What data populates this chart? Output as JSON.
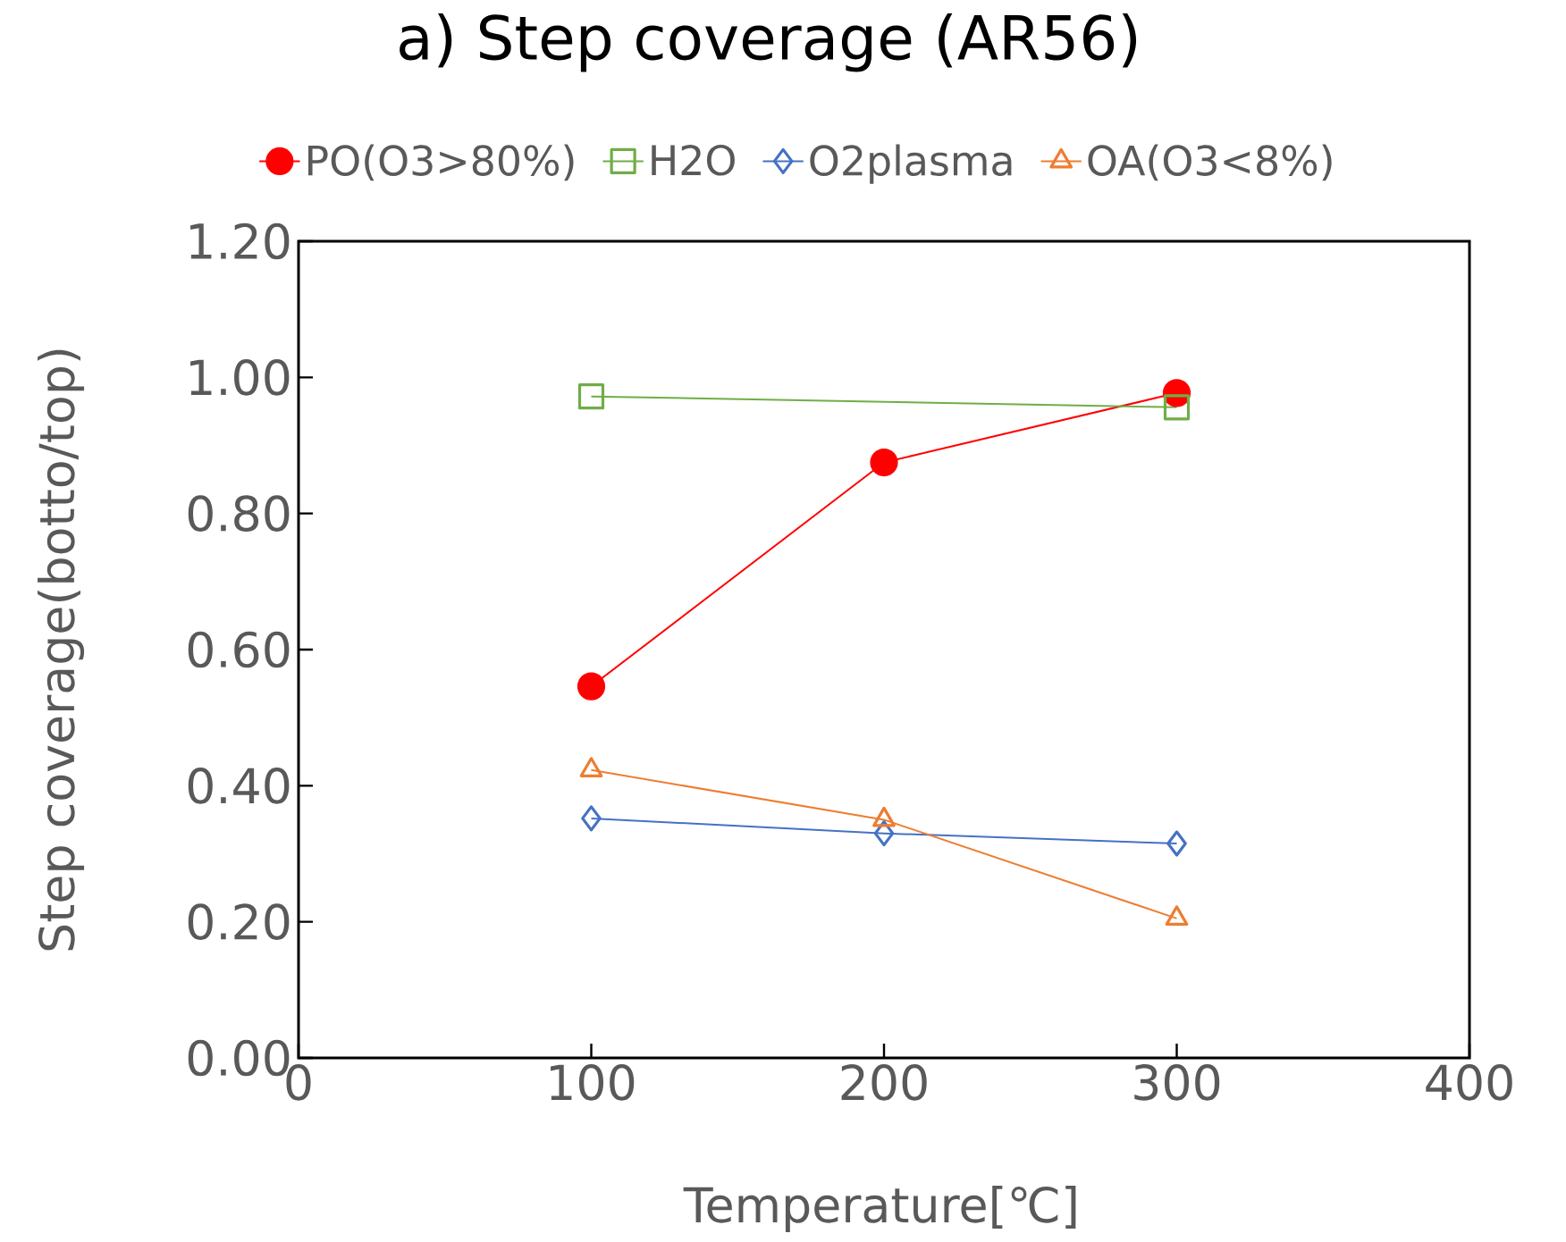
{
  "chart_data": {
    "type": "line",
    "title": "a) Step coverage (AR56)",
    "xlabel": "Temperature[℃]",
    "ylabel": "Step coverage(botto/top)",
    "x": [
      100,
      200,
      300
    ],
    "series": [
      {
        "name": "PO(O3>80%)",
        "color": "#ff0000",
        "marker": "circle",
        "values": [
          0.546,
          0.875,
          0.977
        ]
      },
      {
        "name": "H2O",
        "color": "#70ad47",
        "marker": "square",
        "values": [
          0.972,
          null,
          0.956
        ]
      },
      {
        "name": "O2plasma",
        "color": "#4472c4",
        "marker": "diamond",
        "values": [
          0.352,
          0.33,
          0.315
        ]
      },
      {
        "name": "OA(O3<8%)",
        "color": "#ed7d31",
        "marker": "triangle",
        "values": [
          0.423,
          0.35,
          0.205
        ]
      }
    ],
    "xlim": [
      0,
      400
    ],
    "xticks": [
      0,
      100,
      200,
      300,
      400
    ],
    "ylim": [
      0,
      1.2
    ],
    "yticks": [
      {
        "value": 0,
        "label": "0.00"
      },
      {
        "value": 0.2,
        "label": "0.20"
      },
      {
        "value": 0.4,
        "label": "0.40"
      },
      {
        "value": 0.6,
        "label": "0.60"
      },
      {
        "value": 0.8,
        "label": "0.80"
      },
      {
        "value": 1.0,
        "label": "1.00"
      },
      {
        "value": 1.2,
        "label": "1.20"
      }
    ],
    "grid": false,
    "legend": "top",
    "line_style": "solid"
  }
}
